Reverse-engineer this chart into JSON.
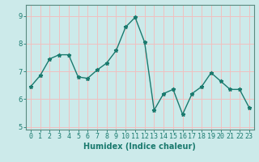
{
  "x": [
    0,
    1,
    2,
    3,
    4,
    5,
    6,
    7,
    8,
    9,
    10,
    11,
    12,
    13,
    14,
    15,
    16,
    17,
    18,
    19,
    20,
    21,
    22,
    23
  ],
  "y": [
    6.45,
    6.85,
    7.45,
    7.6,
    7.6,
    6.8,
    6.75,
    7.05,
    7.3,
    7.75,
    8.6,
    8.95,
    8.05,
    5.6,
    6.2,
    6.35,
    5.45,
    6.2,
    6.45,
    6.95,
    6.65,
    6.35,
    6.35,
    5.7
  ],
  "line_color": "#1a7a6e",
  "marker": "*",
  "markersize": 3.5,
  "linewidth": 1.0,
  "xlabel": "Humidex (Indice chaleur)",
  "xlabel_fontsize": 7,
  "xlabel_fontweight": "bold",
  "bg_color": "#cceaea",
  "grid_color": "#f0c0c0",
  "ax_bg": "#cceaea",
  "ylim": [
    4.9,
    9.4
  ],
  "xlim": [
    -0.5,
    23.5
  ],
  "yticks": [
    5,
    6,
    7,
    8,
    9
  ],
  "xticks": [
    0,
    1,
    2,
    3,
    4,
    5,
    6,
    7,
    8,
    9,
    10,
    11,
    12,
    13,
    14,
    15,
    16,
    17,
    18,
    19,
    20,
    21,
    22,
    23
  ],
  "tick_fontsize": 6,
  "spine_color": "#5a8a80"
}
